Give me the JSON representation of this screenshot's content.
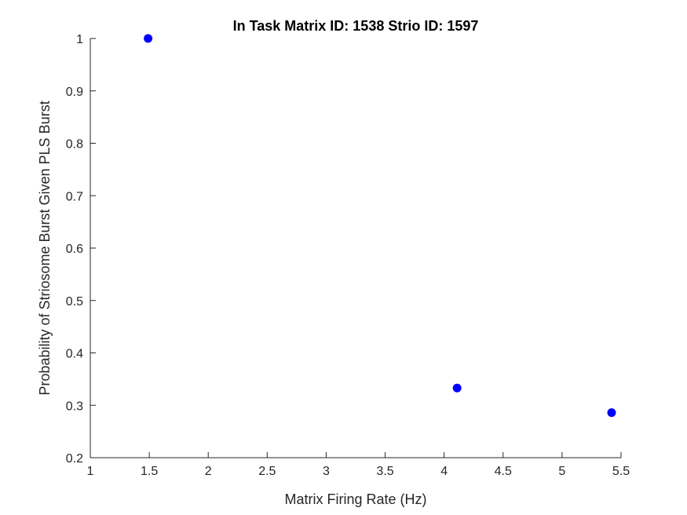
{
  "chart_data": {
    "type": "scatter",
    "title": "In Task Matrix ID: 1538 Strio ID: 1597",
    "xlabel": "Matrix Firing Rate (Hz)",
    "ylabel": "Probability of Striosome Burst Given PLS Burst",
    "xlim": [
      1,
      5.5
    ],
    "ylim": [
      0.2,
      1
    ],
    "xticks": [
      "1",
      "1.5",
      "2",
      "2.5",
      "3",
      "3.5",
      "4",
      "4.5",
      "5",
      "5.5"
    ],
    "yticks": [
      "0.2",
      "0.3",
      "0.4",
      "0.5",
      "0.6",
      "0.7",
      "0.8",
      "0.9",
      "1"
    ],
    "grid": false,
    "legend": "none",
    "series": [
      {
        "color": "#0000ff",
        "marker": "filled-circle",
        "points": [
          {
            "x": 1.49,
            "y": 1.0
          },
          {
            "x": 4.11,
            "y": 0.333
          },
          {
            "x": 5.42,
            "y": 0.286
          }
        ]
      }
    ],
    "axis_color": "#262626"
  }
}
